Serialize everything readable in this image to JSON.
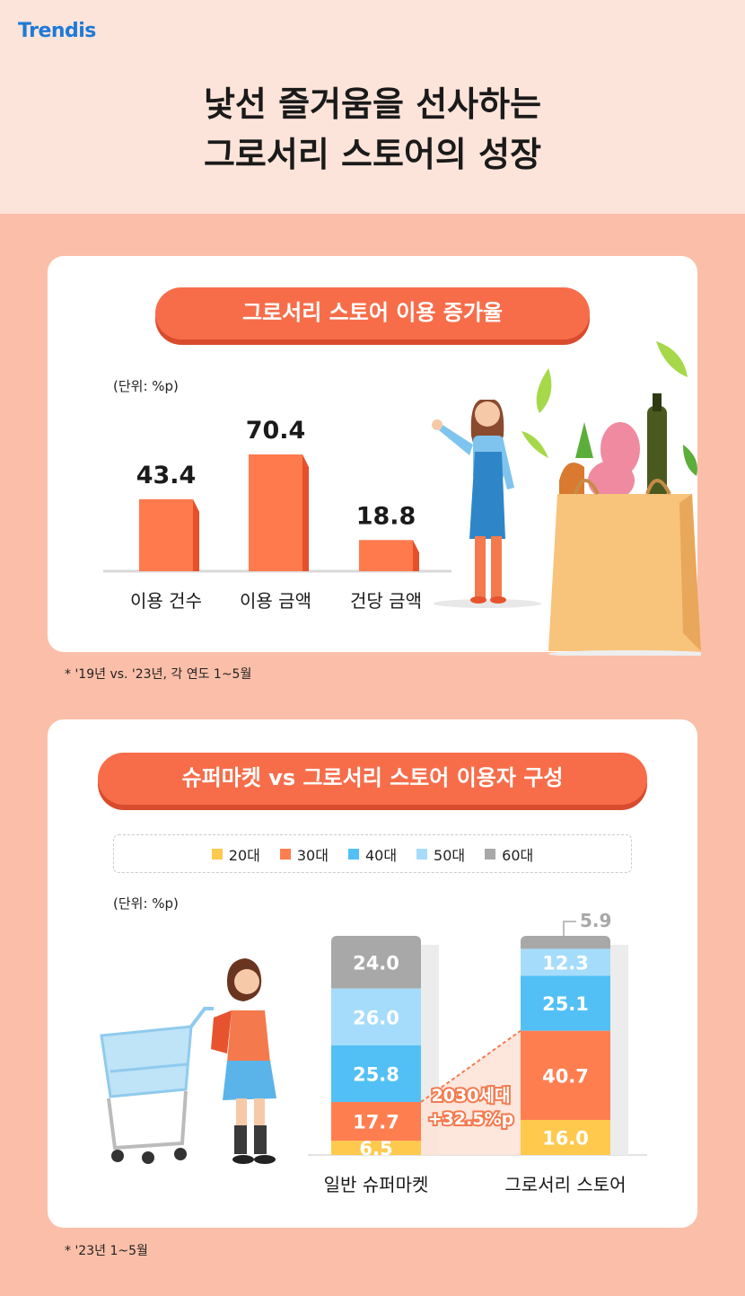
{
  "brand": "Trendis",
  "title_line1": "낯선 즐거움을 선사하는",
  "title_line2": "그로서리 스토어의 성장",
  "section1": {
    "heading": "그로서리 스토어 이용 증가율",
    "unit": "(단위: %p)",
    "footnote": "*  '19년 vs. '23년, 각 연도 1~5월"
  },
  "section2": {
    "heading": "슈퍼마켓 vs 그로서리 스토어 이용자 구성",
    "unit": "(단위: %p)",
    "footnote": "*  '23년 1~5월",
    "annotation_line1": "2030세대",
    "annotation_line2": "+32.5%p"
  },
  "colors": {
    "accent": "#f76d4a",
    "bar": "#ff7a4d",
    "age20": "#ffc94d",
    "age30": "#ff7e50",
    "age40": "#52c0f5",
    "age50": "#a5dcfb",
    "age60": "#a8a8a8"
  },
  "chart_data": [
    {
      "type": "bar",
      "categories": [
        "이용 건수",
        "이용 금액",
        "건당 금액"
      ],
      "values": [
        43.4,
        70.4,
        18.8
      ]
    },
    {
      "type": "bar",
      "stacked": true,
      "categories": [
        "일반 슈퍼마켓",
        "그로서리 스토어"
      ],
      "series": [
        {
          "name": "20대",
          "values": [
            6.5,
            16.0
          ]
        },
        {
          "name": "30대",
          "values": [
            17.7,
            40.7
          ]
        },
        {
          "name": "40대",
          "values": [
            25.8,
            25.1
          ]
        },
        {
          "name": "50대",
          "values": [
            26.0,
            12.3
          ]
        },
        {
          "name": "60대",
          "values": [
            24.0,
            5.9
          ]
        }
      ]
    }
  ]
}
